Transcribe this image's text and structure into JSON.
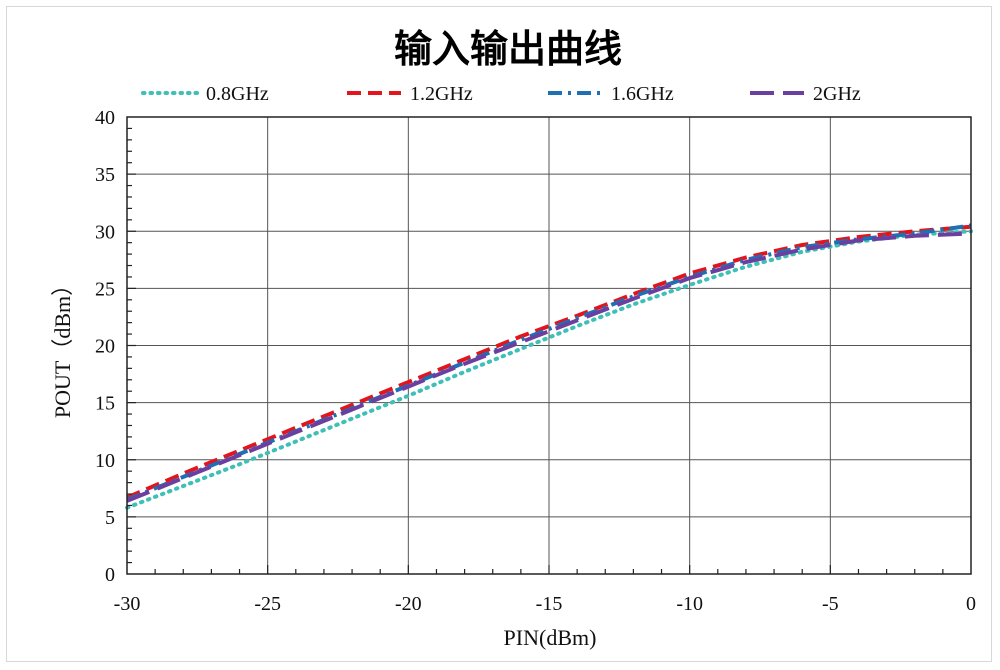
{
  "chart_data": {
    "type": "line",
    "title": "输入输出曲线",
    "xlabel": "PIN(dBm)",
    "ylabel": "POUT（dBm）",
    "xlim": [
      -30,
      0
    ],
    "ylim": [
      0,
      40
    ],
    "xticks": [
      "-30",
      "-25",
      "-20",
      "-15",
      "-10",
      "-5",
      "0"
    ],
    "yticks": [
      "0",
      "5",
      "10",
      "15",
      "20",
      "25",
      "30",
      "35",
      "40"
    ],
    "grid": true,
    "legend_position": "top",
    "x": [
      -30,
      -28,
      -26,
      -24,
      -22,
      -20,
      -18,
      -16,
      -14,
      -12,
      -10,
      -8,
      -6,
      -4,
      -2,
      0
    ],
    "series": [
      {
        "name": "0.8GHz",
        "color": "#3fbfb6",
        "dash": "dotted",
        "values": [
          5.8,
          7.7,
          9.6,
          11.6,
          13.6,
          15.6,
          17.7,
          19.7,
          21.7,
          23.6,
          25.3,
          26.9,
          28.2,
          29.1,
          29.7,
          30.0
        ]
      },
      {
        "name": "1.2GHz",
        "color": "#e3141c",
        "dash": "dashed",
        "values": [
          6.7,
          8.8,
          10.8,
          12.8,
          14.8,
          16.8,
          18.8,
          20.8,
          22.6,
          24.5,
          26.3,
          27.7,
          28.8,
          29.5,
          30.0,
          30.4
        ]
      },
      {
        "name": "1.6GHz",
        "color": "#1f6fb5",
        "dash": "dashdot",
        "values": [
          6.5,
          8.5,
          10.5,
          12.5,
          14.5,
          16.5,
          18.5,
          20.5,
          22.4,
          24.3,
          26.0,
          27.5,
          28.6,
          29.3,
          29.8,
          30.5
        ]
      },
      {
        "name": "2GHz",
        "color": "#6b3fa0",
        "dash": "longdash",
        "values": [
          6.4,
          8.4,
          10.4,
          12.4,
          14.4,
          16.4,
          18.4,
          20.3,
          22.2,
          24.1,
          25.9,
          27.3,
          28.4,
          29.2,
          29.6,
          29.8
        ]
      }
    ]
  }
}
